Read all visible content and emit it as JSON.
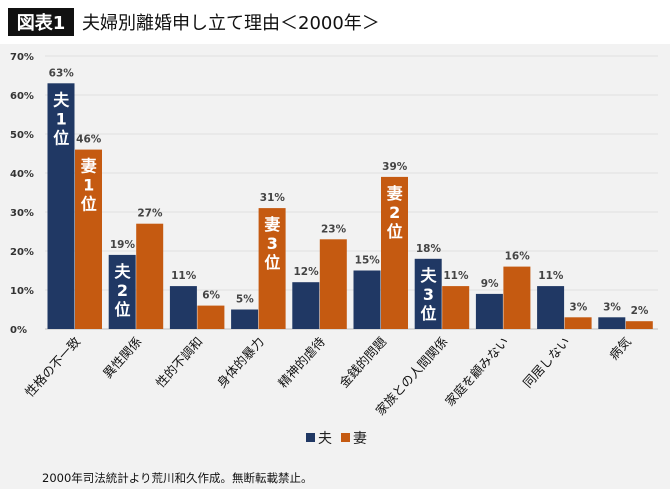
{
  "header": {
    "badge": "図表1",
    "title": "夫婦別離婚申し立て理由＜2000年＞"
  },
  "footnote": "2000年司法統計より荒川和久作成。無断転載禁止。",
  "colors": {
    "husband": "#203864",
    "wife": "#c55a11",
    "background": "#f2f2f2",
    "badge": "#111111"
  },
  "chart_data": {
    "type": "bar",
    "categories": [
      "性格の不一致",
      "異性関係",
      "性的不調和",
      "身体的暴力",
      "精神的虐待",
      "金銭的問題",
      "家族との人間関係",
      "家庭を顧みない",
      "同居しない",
      "病気"
    ],
    "series": [
      {
        "name": "夫",
        "values": [
          63,
          19,
          11,
          5,
          12,
          15,
          18,
          9,
          11,
          3
        ],
        "data_labels": [
          "63%",
          "19%",
          "11%",
          "5%",
          "12%",
          "15%",
          "18%",
          "9%",
          "11%",
          "3%"
        ]
      },
      {
        "name": "妻",
        "values": [
          46,
          27,
          6,
          31,
          23,
          39,
          11,
          16,
          3,
          2
        ],
        "data_labels": [
          "46%",
          "27%",
          "6%",
          "31%",
          "23%",
          "39%",
          "11%",
          "16%",
          "3%",
          "2%"
        ]
      }
    ],
    "rank_annotations": [
      {
        "series": 0,
        "category": 0,
        "text": [
          "夫",
          "1",
          "位"
        ]
      },
      {
        "series": 1,
        "category": 0,
        "text": [
          "妻",
          "1",
          "位"
        ]
      },
      {
        "series": 0,
        "category": 1,
        "text": [
          "夫",
          "2",
          "位"
        ]
      },
      {
        "series": 1,
        "category": 3,
        "text": [
          "妻",
          "3",
          "位"
        ]
      },
      {
        "series": 1,
        "category": 5,
        "text": [
          "妻",
          "2",
          "位"
        ]
      },
      {
        "series": 0,
        "category": 6,
        "text": [
          "夫",
          "3",
          "位"
        ]
      }
    ],
    "ylim": [
      0,
      70
    ],
    "yticks": [
      "0%",
      "10%",
      "20%",
      "30%",
      "40%",
      "50%",
      "60%",
      "70%"
    ],
    "grid": true,
    "legend": "bottom-center"
  }
}
